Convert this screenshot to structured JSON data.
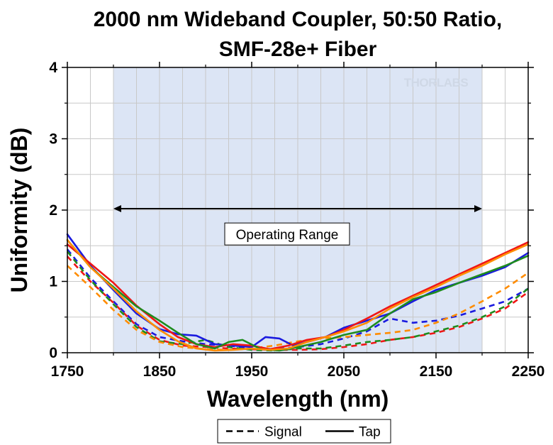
{
  "chart_data": {
    "type": "line",
    "title_lines": [
      "2000 nm Wideband Coupler, 50:50 Ratio,",
      "SMF-28e+ Fiber"
    ],
    "xlabel": "Wavelength (nm)",
    "ylabel": "Uniformity (dB)",
    "xlim": [
      1750,
      2250
    ],
    "ylim": [
      0,
      4
    ],
    "xticks": [
      1750,
      1850,
      1950,
      2050,
      2150,
      2250
    ],
    "yticks": [
      0,
      1,
      2,
      3,
      4
    ],
    "grid": true,
    "shaded_region": {
      "x": [
        1800,
        2200
      ]
    },
    "range_arrow": {
      "x": [
        1800,
        2200
      ],
      "y": 2.02
    },
    "annotation": {
      "text": "Operating Range",
      "x": 2000,
      "y": 1.66
    },
    "watermark": "THORLABS",
    "legend": {
      "placement": "bottom-center",
      "entries": [
        {
          "label": "Signal",
          "style": "dashed"
        },
        {
          "label": "Tap",
          "style": "solid"
        }
      ]
    },
    "colors": {
      "blue": "#1a1adf",
      "red": "#f01616",
      "green": "#1e8c1e",
      "orange": "#ff8c00",
      "shade": "#dce5f5"
    },
    "series": [
      {
        "style": "solid",
        "color": "blue",
        "x": [
          1750,
          1775,
          1800,
          1825,
          1850,
          1870,
          1890,
          1910,
          1930,
          1950,
          1965,
          1980,
          1995,
          2010,
          2030,
          2050,
          2075,
          2100,
          2125,
          2150,
          2175,
          2200,
          2225,
          2250
        ],
        "y": [
          1.66,
          1.22,
          0.88,
          0.55,
          0.33,
          0.26,
          0.24,
          0.12,
          0.1,
          0.08,
          0.22,
          0.2,
          0.1,
          0.15,
          0.22,
          0.35,
          0.45,
          0.55,
          0.72,
          0.88,
          0.98,
          1.08,
          1.2,
          1.4
        ]
      },
      {
        "style": "solid",
        "color": "red",
        "x": [
          1750,
          1775,
          1800,
          1825,
          1850,
          1870,
          1890,
          1910,
          1930,
          1950,
          1970,
          1990,
          2010,
          2030,
          2050,
          2075,
          2100,
          2125,
          2150,
          2175,
          2200,
          2225,
          2250
        ],
        "y": [
          1.52,
          1.25,
          0.98,
          0.66,
          0.4,
          0.22,
          0.12,
          0.08,
          0.12,
          0.1,
          0.05,
          0.1,
          0.18,
          0.22,
          0.32,
          0.48,
          0.65,
          0.8,
          0.95,
          1.1,
          1.25,
          1.4,
          1.55
        ]
      },
      {
        "style": "solid",
        "color": "green",
        "x": [
          1750,
          1775,
          1800,
          1825,
          1850,
          1870,
          1890,
          1910,
          1925,
          1940,
          1960,
          1980,
          2000,
          2025,
          2050,
          2075,
          2100,
          2125,
          2150,
          2175,
          2200,
          2225,
          2250
        ],
        "y": [
          1.58,
          1.2,
          0.92,
          0.65,
          0.45,
          0.28,
          0.12,
          0.06,
          0.15,
          0.18,
          0.05,
          0.03,
          0.08,
          0.15,
          0.25,
          0.32,
          0.55,
          0.75,
          0.85,
          0.98,
          1.1,
          1.22,
          1.36
        ]
      },
      {
        "style": "solid",
        "color": "orange",
        "x": [
          1750,
          1775,
          1800,
          1825,
          1850,
          1870,
          1890,
          1910,
          1930,
          1950,
          1970,
          1990,
          2010,
          2030,
          2050,
          2075,
          2100,
          2125,
          2150,
          2175,
          2200,
          2225,
          2250
        ],
        "y": [
          1.58,
          1.2,
          0.9,
          0.58,
          0.32,
          0.16,
          0.06,
          0.03,
          0.04,
          0.06,
          0.04,
          0.06,
          0.15,
          0.22,
          0.3,
          0.42,
          0.62,
          0.78,
          0.92,
          1.08,
          1.22,
          1.38,
          1.52
        ]
      },
      {
        "style": "dashed",
        "color": "blue",
        "x": [
          1750,
          1775,
          1800,
          1825,
          1850,
          1875,
          1900,
          1925,
          1950,
          1975,
          2000,
          2025,
          2050,
          2075,
          2100,
          2125,
          2150,
          2175,
          2200,
          2225,
          2250
        ],
        "y": [
          1.45,
          1.05,
          0.72,
          0.4,
          0.22,
          0.16,
          0.12,
          0.1,
          0.06,
          0.05,
          0.08,
          0.12,
          0.2,
          0.3,
          0.48,
          0.42,
          0.45,
          0.52,
          0.62,
          0.72,
          0.9
        ]
      },
      {
        "style": "dashed",
        "color": "red",
        "x": [
          1750,
          1775,
          1800,
          1825,
          1850,
          1875,
          1900,
          1925,
          1950,
          1975,
          2000,
          2025,
          2050,
          2075,
          2100,
          2125,
          2150,
          2175,
          2200,
          2225,
          2250
        ],
        "y": [
          1.35,
          1.0,
          0.7,
          0.38,
          0.18,
          0.1,
          0.08,
          0.06,
          0.05,
          0.04,
          0.04,
          0.05,
          0.08,
          0.12,
          0.18,
          0.22,
          0.28,
          0.36,
          0.48,
          0.62,
          0.85
        ]
      },
      {
        "style": "dashed",
        "color": "green",
        "x": [
          1750,
          1775,
          1800,
          1825,
          1850,
          1875,
          1900,
          1925,
          1950,
          1975,
          2000,
          2025,
          2050,
          2075,
          2100,
          2125,
          2150,
          2175,
          2200,
          2225,
          2250
        ],
        "y": [
          1.42,
          1.02,
          0.68,
          0.36,
          0.16,
          0.12,
          0.18,
          0.08,
          0.04,
          0.03,
          0.06,
          0.06,
          0.1,
          0.15,
          0.18,
          0.22,
          0.3,
          0.38,
          0.5,
          0.65,
          0.9
        ]
      },
      {
        "style": "dashed",
        "color": "orange",
        "x": [
          1750,
          1775,
          1800,
          1825,
          1850,
          1875,
          1900,
          1925,
          1950,
          1975,
          2000,
          2025,
          2050,
          2075,
          2100,
          2125,
          2150,
          2175,
          2200,
          2225,
          2250
        ],
        "y": [
          1.22,
          0.92,
          0.6,
          0.32,
          0.15,
          0.08,
          0.05,
          0.04,
          0.06,
          0.1,
          0.16,
          0.2,
          0.22,
          0.25,
          0.28,
          0.32,
          0.42,
          0.55,
          0.72,
          0.9,
          1.12
        ]
      }
    ]
  }
}
